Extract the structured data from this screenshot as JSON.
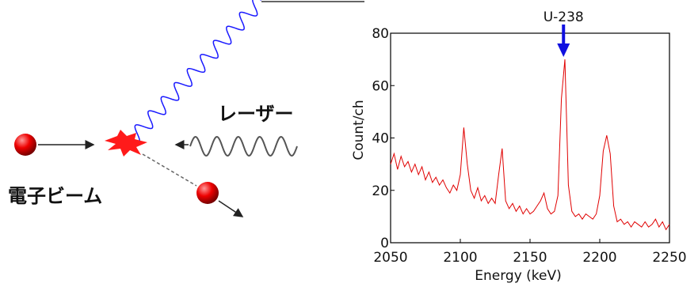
{
  "diagram": {
    "laser_label": "レーザー",
    "beam_label": "電子ビーム"
  },
  "chart_data": {
    "type": "line",
    "x_label": "Energy (keV)",
    "y_label": "Count/ch",
    "annotation": "U-238",
    "annotation_x": 2174,
    "xlim": [
      2050,
      2250
    ],
    "xticks": [
      2050,
      2100,
      2150,
      2200,
      2250
    ],
    "ylim": [
      0,
      80
    ],
    "yticks": [
      0,
      20,
      40,
      60,
      80
    ],
    "x": [
      2050,
      2052.5,
      2055,
      2057.5,
      2060,
      2062.5,
      2065,
      2067.5,
      2070,
      2072.5,
      2075,
      2077.5,
      2080,
      2082.5,
      2085,
      2087.5,
      2090,
      2092.5,
      2095,
      2097.5,
      2100,
      2102.5,
      2105,
      2107.5,
      2110,
      2112.5,
      2115,
      2117.5,
      2120,
      2122.5,
      2125,
      2127.5,
      2130,
      2132.5,
      2135,
      2137.5,
      2140,
      2142.5,
      2145,
      2147.5,
      2150,
      2152.5,
      2155,
      2157.5,
      2160,
      2162.5,
      2165,
      2167.5,
      2170,
      2172.5,
      2175,
      2177.5,
      2180,
      2182.5,
      2185,
      2187.5,
      2190,
      2192.5,
      2195,
      2197.5,
      2200,
      2202.5,
      2205,
      2207.5,
      2210,
      2212.5,
      2215,
      2217.5,
      2220,
      2222.5,
      2225,
      2227.5,
      2230,
      2232.5,
      2235,
      2237.5,
      2240,
      2242.5,
      2245,
      2247.5,
      2250
    ],
    "series": [
      {
        "color": "#e00000",
        "values": [
          30,
          34,
          28,
          33,
          29,
          31,
          27,
          30,
          26,
          29,
          24,
          27,
          23,
          25,
          22,
          24,
          21,
          19,
          22,
          20,
          26,
          44,
          30,
          20,
          17,
          21,
          16,
          18,
          15,
          17,
          15,
          26,
          36,
          16,
          13,
          15,
          12,
          14,
          11,
          13,
          11,
          12,
          14,
          16,
          19,
          13,
          11,
          12,
          18,
          55,
          70,
          22,
          12,
          10,
          11,
          9,
          11,
          10,
          9,
          11,
          18,
          35,
          41,
          34,
          14,
          8,
          9,
          7,
          8,
          6,
          8,
          7,
          6,
          8,
          6,
          7,
          9,
          6,
          8,
          5,
          7
        ]
      }
    ]
  }
}
